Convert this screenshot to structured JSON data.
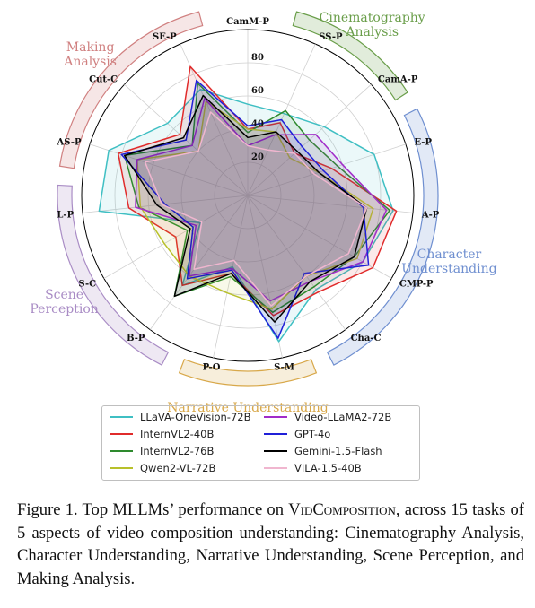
{
  "chart_data": {
    "type": "radar",
    "axes": [
      "CamM-P",
      "SS-P",
      "CamA-P",
      "E-P",
      "A-P",
      "CMP-P",
      "Cha-C",
      "S-M",
      "P-O",
      "B-P",
      "S-C",
      "L-P",
      "AS-P",
      "Cut-C",
      "SE-P"
    ],
    "radial_ticks": [
      "20",
      "40",
      "60",
      "80"
    ],
    "rlim": [
      0,
      100
    ],
    "grid": true,
    "aspects": [
      {
        "name": "Cinematography Analysis",
        "lines": [
          "Cinematography",
          "Analysis"
        ],
        "color": "#6a9e4a",
        "axes": [
          "SS-P",
          "CamA-P"
        ]
      },
      {
        "name": "Character Understanding",
        "lines": [
          "Character",
          "Understanding"
        ],
        "color": "#6f8fd0",
        "axes": [
          "E-P",
          "A-P",
          "CMP-P",
          "Cha-C"
        ]
      },
      {
        "name": "Narrative Understanding",
        "lines": [
          "Narrative Understanding"
        ],
        "color": "#d8a84a",
        "axes": [
          "S-M",
          "P-O"
        ]
      },
      {
        "name": "Scene Perception",
        "lines": [
          "Scene",
          "Perception"
        ],
        "color": "#a98cc5",
        "axes": [
          "B-P",
          "S-C",
          "L-P"
        ]
      },
      {
        "name": "Making Analysis",
        "lines": [
          "Making",
          "Analysis"
        ],
        "color": "#d08080",
        "axes": [
          "AS-P",
          "Cut-C",
          "SE-P"
        ]
      }
    ],
    "series": [
      {
        "name": "LLaVA-OneVision-72B",
        "color": "#3fbfc3",
        "values": [
          55,
          54,
          62,
          80,
          88,
          80,
          70,
          90,
          44,
          67,
          33,
          90,
          88,
          65,
          70
        ]
      },
      {
        "name": "InternVL2-40B",
        "color": "#e02b2b",
        "values": [
          40,
          48,
          38,
          53,
          90,
          87,
          72,
          74,
          48,
          67,
          50,
          72,
          82,
          55,
          85
        ]
      },
      {
        "name": "InternVL2-76B",
        "color": "#2e8a2e",
        "values": [
          38,
          56,
          50,
          57,
          86,
          74,
          68,
          72,
          50,
          75,
          42,
          66,
          78,
          45,
          74
        ]
      },
      {
        "name": "Qwen2-VL-72B",
        "color": "#b8c02a",
        "values": [
          40,
          42,
          34,
          45,
          76,
          76,
          60,
          70,
          60,
          60,
          58,
          65,
          70,
          40,
          62
        ]
      },
      {
        "name": "Video-LLaMA2-72B",
        "color": "#a12cc9",
        "values": [
          30,
          40,
          55,
          60,
          84,
          80,
          64,
          65,
          45,
          60,
          36,
          68,
          70,
          45,
          64
        ]
      },
      {
        "name": "GPT-4o",
        "color": "#2020d8",
        "values": [
          42,
          50,
          44,
          48,
          70,
          84,
          58,
          88,
          46,
          62,
          38,
          50,
          80,
          50,
          76
        ]
      },
      {
        "name": "Gemini-1.5-Flash",
        "color": "#000000",
        "values": [
          35,
          42,
          40,
          45,
          72,
          74,
          64,
          78,
          48,
          75,
          40,
          55,
          78,
          52,
          66
        ]
      },
      {
        "name": "VILA-1.5-40B",
        "color": "#f0b6cf",
        "values": [
          30,
          30,
          38,
          42,
          72,
          70,
          60,
          68,
          40,
          55,
          32,
          52,
          65,
          40,
          55
        ]
      }
    ]
  },
  "caption": {
    "prefix": "Figure 1. Top MLLMs’ performance on ",
    "name": "VidComposition",
    "suffix": ", across 15 tasks of 5 aspects of video composition understanding: Cinematography Analysis, Character Understanding, Narrative Understanding, Scene Perception, and Making Analysis."
  }
}
